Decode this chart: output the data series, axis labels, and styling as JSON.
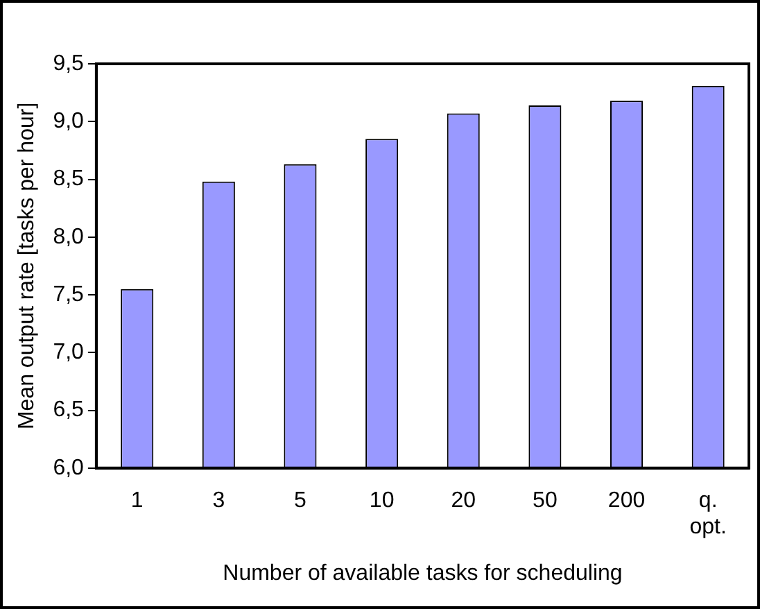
{
  "chart_data": {
    "type": "bar",
    "xlabel": "Number of available tasks for scheduling",
    "ylabel": "Mean output rate [tasks per hour]",
    "categories": [
      "1",
      "3",
      "5",
      "10",
      "20",
      "50",
      "200",
      "q. opt."
    ],
    "values": [
      7.55,
      8.48,
      8.63,
      8.85,
      9.07,
      9.14,
      9.18,
      9.31
    ],
    "color": "#9999ff",
    "ylim": [
      6,
      9.5
    ],
    "yticks": [
      {
        "value": 6,
        "label": "6,0"
      },
      {
        "value": 6.5,
        "label": "6,5"
      },
      {
        "value": 7,
        "label": "7,0"
      },
      {
        "value": 7.5,
        "label": "7,5"
      },
      {
        "value": 8,
        "label": "8,0"
      },
      {
        "value": 8.5,
        "label": "8,5"
      },
      {
        "value": 9,
        "label": "9,0"
      },
      {
        "value": 9.5,
        "label": "9,5"
      }
    ],
    "grid": false,
    "legend": false
  }
}
